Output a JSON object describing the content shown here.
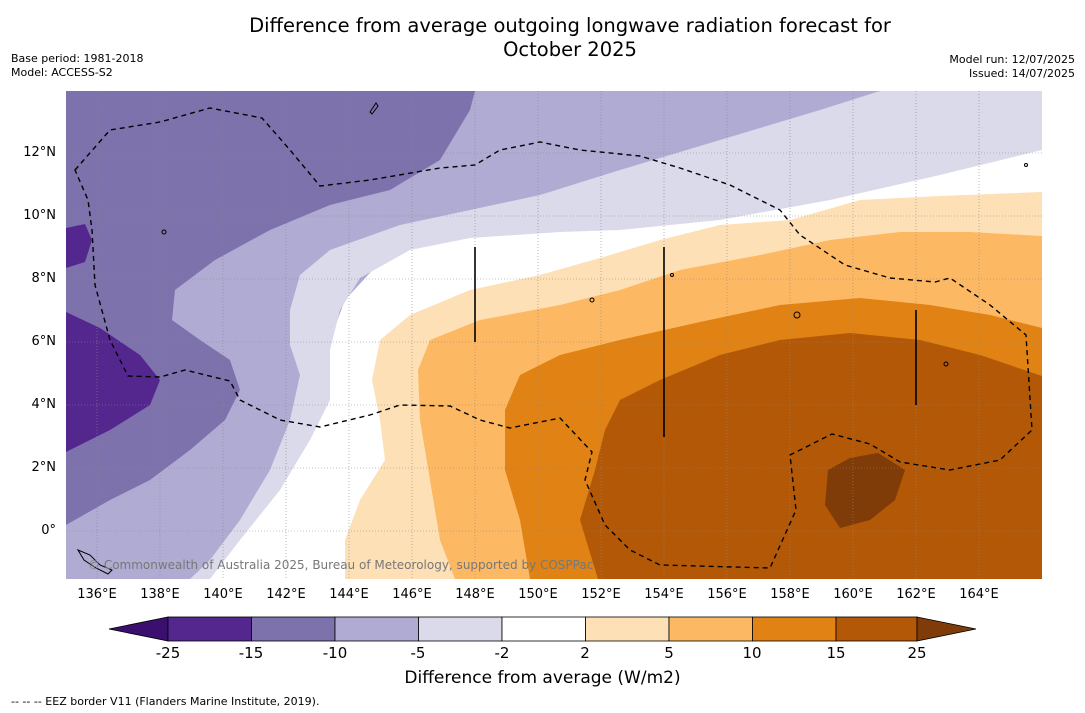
{
  "title": "Difference from average outgoing longwave radiation forecast for October 2025",
  "title_line1": "Difference from average outgoing longwave radiation forecast for",
  "title_line2": "October 2025",
  "meta_left": {
    "base_period": "Base period: 1981-2018",
    "model": "Model: ACCESS-S2"
  },
  "meta_right": {
    "model_run": "Model run: 12/07/2025",
    "issued": "Issued: 14/07/2025"
  },
  "y_axis_labels": [
    "12°N",
    "10°N",
    "8°N",
    "6°N",
    "4°N",
    "2°N",
    "0°"
  ],
  "x_axis_labels": [
    "136°E",
    "138°E",
    "140°E",
    "142°E",
    "144°E",
    "146°E",
    "148°E",
    "150°E",
    "152°E",
    "154°E",
    "156°E",
    "158°E",
    "160°E",
    "162°E",
    "164°E"
  ],
  "copyright": "© Commonwealth of Australia 2025, Bureau of Meteorology, supported by COSPPac",
  "colorbar": {
    "title": "Difference from average (W/m2)",
    "ticks": [
      "-25",
      "-15",
      "-10",
      "-5",
      "-2",
      "2",
      "5",
      "10",
      "15",
      "25"
    ],
    "colors": {
      "lt_-25": "#3b0f6f",
      "-25_-15": "#54278f",
      "-15_-10": "#7e72ad",
      "-10_-5": "#b0abd3",
      "-5_-2": "#dadaeb",
      "-2_2": "#ffffff",
      "2_5": "#fee0b6",
      "5_10": "#fdb863",
      "10_15": "#e08214",
      "15_25": "#b35806",
      "gt_25": "#7f3b08"
    }
  },
  "legend_note": "-- -- -- EEZ border V11 (Flanders Marine Institute, 2019).",
  "map": {
    "lon_range": [
      "135°E",
      "166°E"
    ],
    "lat_range": [
      "1.5°S",
      "14°N"
    ],
    "grid": "dotted",
    "features": [
      "coastlines",
      "eez-border"
    ]
  }
}
